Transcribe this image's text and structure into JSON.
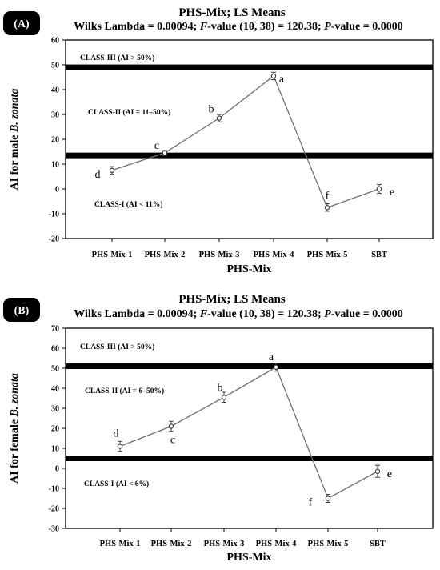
{
  "colors": {
    "series_line": "#707070",
    "marker": "#404040",
    "class_band": "#000000",
    "badge_bg": "#000000",
    "badge_text": "#ffffff"
  },
  "chart_data": [
    {
      "id": "A",
      "type": "line",
      "panel_label": "(A)",
      "title": "PHS-Mix; LS Means",
      "subtitle": "Wilks Lambda = 0.00094; F-value (10, 38) = 120.38; P-value = 0.0000",
      "xlabel": "PHS-Mix",
      "ylabel": "AI for male B. zonata",
      "ylim": [
        -20,
        60
      ],
      "y_ticks": [
        -20,
        -10,
        0,
        10,
        20,
        30,
        40,
        50,
        60
      ],
      "categories": [
        "PHS-Mix-1",
        "PHS-Mix-2",
        "PHS-Mix-3",
        "PHS-Mix-4",
        "PHS-Mix-5",
        "SBT"
      ],
      "series": [
        {
          "values": [
            7.5,
            14.5,
            28.5,
            45.5,
            -7.5,
            0
          ],
          "errors": [
            1.5,
            1.0,
            1.5,
            1.5,
            1.5,
            1.8
          ],
          "letters": [
            "d",
            "c",
            "b",
            "a",
            "f",
            "e"
          ]
        }
      ],
      "class_lines": [
        13.5,
        49.0
      ],
      "class_labels": [
        "CLASS-III (AI > 50%)",
        "CLASS-II (AI = 11–50%)",
        "CLASS-I (AI < 11%)"
      ],
      "grid": false
    },
    {
      "id": "B",
      "type": "line",
      "panel_label": "(B)",
      "title": "PHS-Mix; LS Means",
      "subtitle": "Wilks Lambda = 0.00094; F-value (10, 38) = 120.38; P-value = 0.0000",
      "xlabel": "PHS-Mix",
      "ylabel": "AI for female B. zonata",
      "ylim": [
        -30,
        70
      ],
      "y_ticks": [
        -30,
        -20,
        -10,
        0,
        10,
        20,
        30,
        40,
        50,
        60,
        70
      ],
      "categories": [
        "PHS-Mix-1",
        "PHS-Mix-2",
        "PHS-Mix-3",
        "PHS-Mix-4",
        "PHS-Mix-5",
        "SBT"
      ],
      "series": [
        {
          "values": [
            11,
            21,
            35.5,
            50.5,
            -15,
            -1.5
          ],
          "errors": [
            2.5,
            2.5,
            2.5,
            2.0,
            2.0,
            3.0
          ],
          "letters": [
            "d",
            "c",
            "b",
            "a",
            "f",
            "e"
          ]
        }
      ],
      "class_lines": [
        5.0,
        51.0
      ],
      "class_labels": [
        "CLASS-III (AI > 50%)",
        "CLASS-II (AI = 6–50%)",
        "CLASS-I (AI < 6%)"
      ],
      "grid": false
    }
  ]
}
